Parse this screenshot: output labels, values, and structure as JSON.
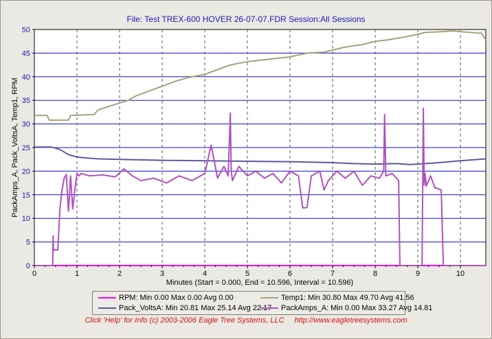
{
  "title": "File: Test TREX-600 HOVER 26-07-07.FDR   Session:All Sessions",
  "footer": {
    "help": "Click 'Help' for Info  (c) 2003-2006 Eagle Tree Systems, LLC",
    "url": "http://www.eagletreesystems.com"
  },
  "chart_data": {
    "type": "line",
    "title": "File: Test TREX-600 HOVER 26-07-07.FDR   Session:All Sessions",
    "xlabel": "Minutes (Start = 0.000,  End = 10.596,  Interval =  10.596)",
    "ylabel": "PackAmps_A, Pack_VoltsA, Temp1, RPM",
    "xlim": [
      0,
      10.596
    ],
    "ylim": [
      0,
      50
    ],
    "x_ticks": [
      "0",
      "1",
      "2",
      "3",
      "4",
      "5",
      "6",
      "7",
      "8",
      "9",
      "10"
    ],
    "y_ticks": [
      "0",
      "5",
      "10",
      "15",
      "20",
      "25",
      "30",
      "35",
      "40",
      "45",
      "50"
    ],
    "grid": true,
    "background": "#ffffff",
    "series": [
      {
        "name": "RPM",
        "color": "#ff00ff",
        "stats": "Min 0.00 Max 0.00 Avg 0.00",
        "legend_text": "RPM:  Min 0.00 Max 0.00 Avg 0.00",
        "x": [
          0,
          10.596
        ],
        "y": [
          0,
          0
        ]
      },
      {
        "name": "Temp1",
        "color": "#a8a07a",
        "stats": "Min 30.80 Max 49.70 Avg 41.56",
        "legend_text": "Temp1:  Min 30.80 Max 49.70 Avg 41.56",
        "x": [
          0,
          0.3,
          0.35,
          0.8,
          0.85,
          1.4,
          1.5,
          2.2,
          2.4,
          3,
          3.3,
          3.6,
          4,
          4.3,
          4.6,
          5,
          5.3,
          6,
          6.4,
          6.8,
          7.3,
          7.7,
          8,
          8.3,
          8.8,
          9.2,
          9.5,
          9.8,
          10.2,
          10.5,
          10.596
        ],
        "y": [
          31.8,
          31.8,
          30.8,
          30.8,
          31.8,
          32,
          33,
          35,
          36,
          38,
          39,
          39.8,
          40.5,
          41.5,
          42.5,
          43.2,
          43.5,
          44.2,
          45,
          45.2,
          46.3,
          46.8,
          47.5,
          47.8,
          48.6,
          49.4,
          49.5,
          49.7,
          49.4,
          49.2,
          47.8
        ]
      },
      {
        "name": "Pack_VoltsA",
        "color": "#5a5aa0",
        "stats": "Min 20.81 Max 25.14 Avg 22.17",
        "legend_text": "Pack_VoltsA:  Min 20.81 Max 25.14 Avg 22.17",
        "x": [
          0,
          0.4,
          0.6,
          0.8,
          1,
          1.2,
          1.5,
          2,
          3,
          4,
          5,
          6,
          7,
          7.5,
          8,
          8.5,
          8.8,
          9,
          9.5,
          10,
          10.596
        ],
        "y": [
          25.1,
          25.1,
          24.6,
          23.5,
          23,
          22.8,
          22.6,
          22.5,
          22.3,
          22.2,
          22.1,
          22,
          21.8,
          21.6,
          21.5,
          21.6,
          21.4,
          21.5,
          21.8,
          22.2,
          22.6
        ]
      },
      {
        "name": "PackAmps_A",
        "color": "#b050c0",
        "stats": "Min 0.00 Max 33.27 Avg 14.81",
        "legend_text": "PackAmps_A:  Min 0.00 Max 33.27 Avg 14.81",
        "x": [
          0,
          0.43,
          0.44,
          0.45,
          0.55,
          0.6,
          0.65,
          0.7,
          0.75,
          0.8,
          0.85,
          0.9,
          0.95,
          1,
          1.05,
          1.1,
          1.3,
          1.6,
          1.9,
          2.1,
          2.3,
          2.5,
          2.8,
          3.1,
          3.4,
          3.7,
          4,
          4.15,
          4.3,
          4.45,
          4.55,
          4.6,
          4.62,
          4.65,
          4.8,
          5,
          5.2,
          5.4,
          5.6,
          5.8,
          6,
          6.2,
          6.3,
          6.4,
          6.5,
          6.7,
          6.8,
          6.9,
          7.1,
          7.3,
          7.5,
          7.7,
          7.9,
          8.1,
          8.2,
          8.22,
          8.25,
          8.4,
          8.55,
          8.58,
          8.6,
          8.7,
          8.75,
          8.8,
          8.82,
          9.1,
          9.13,
          9.15,
          9.17,
          9.2,
          9.3,
          9.4,
          9.55,
          9.6,
          10.596
        ],
        "y": [
          0,
          0,
          6.3,
          3.3,
          3.3,
          12,
          16,
          18.5,
          19.3,
          11.5,
          19,
          12,
          16,
          19.5,
          19,
          19.5,
          19,
          19.2,
          18.8,
          20.5,
          19,
          18,
          18.5,
          17.5,
          19,
          18,
          19.5,
          25.5,
          18.5,
          21,
          19,
          32.3,
          20,
          18,
          21,
          19,
          20,
          18.5,
          19.5,
          17.5,
          20,
          19,
          12.2,
          12.3,
          19,
          20,
          16,
          18,
          20,
          18.5,
          20,
          17,
          19,
          18.5,
          20,
          32,
          19,
          19.5,
          18,
          0,
          0,
          0,
          0,
          0,
          0,
          0,
          33.3,
          17,
          19.5,
          16.8,
          19,
          16.5,
          16,
          0,
          0
        ]
      }
    ]
  }
}
